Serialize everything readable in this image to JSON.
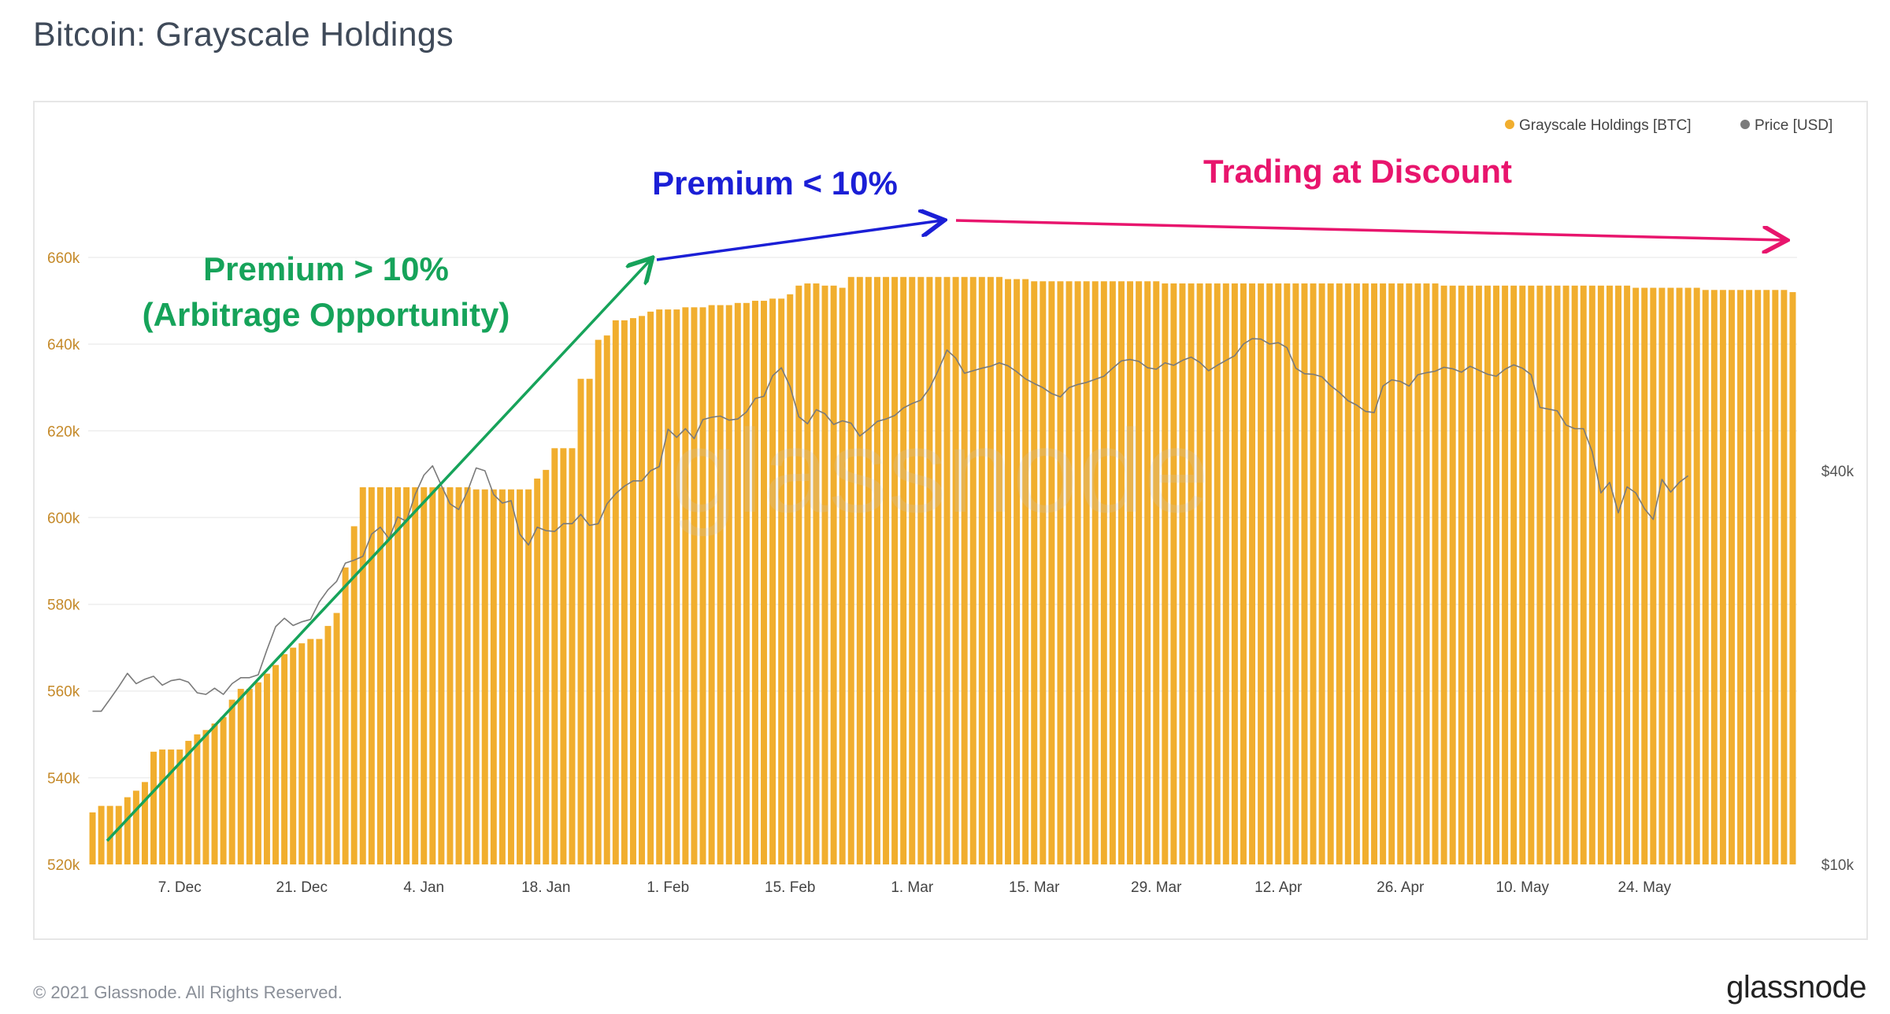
{
  "page": {
    "title": "Bitcoin: Grayscale Holdings",
    "copyright": "© 2021 Glassnode. All Rights Reserved.",
    "brand": "glassnode",
    "watermark": "glassnode"
  },
  "colors": {
    "bars": "#f1ae2e",
    "price_line": "#7a7a7a",
    "left_axis_text": "#c58a2a",
    "right_axis_text": "#555555",
    "annotation_green": "#16a35a",
    "annotation_blue": "#1b1fd6",
    "annotation_pink": "#e8156d"
  },
  "annotations": {
    "premium_high_line1": "Premium > 10%",
    "premium_high_line2": "(Arbitrage Opportunity)",
    "premium_low": "Premium < 10%",
    "discount": "Trading at Discount"
  },
  "chart_data": {
    "type": "bar",
    "title": "Bitcoin: Grayscale Holdings",
    "legend_position": "top-right",
    "grid": true,
    "x_ticks": [
      "7. Dec",
      "21. Dec",
      "4. Jan",
      "18. Jan",
      "1. Feb",
      "15. Feb",
      "1. Mar",
      "15. Mar",
      "29. Mar",
      "12. Apr",
      "26. Apr",
      "10. May",
      "24. May"
    ],
    "y_left": {
      "ylim": [
        520000,
        665000
      ],
      "ticks": [
        520000,
        540000,
        560000,
        580000,
        600000,
        620000,
        640000,
        660000
      ],
      "tick_labels": [
        "520k",
        "540k",
        "560k",
        "580k",
        "600k",
        "620k",
        "640k",
        "660k"
      ]
    },
    "y_right": {
      "scale": "log",
      "ticks": [
        10000,
        40000
      ],
      "tick_labels": [
        "$10k",
        "$40k"
      ]
    },
    "series": [
      {
        "name": "Grayscale Holdings [BTC]",
        "type": "bar",
        "axis": "left",
        "start_date": "2020-11-27",
        "values": [
          532000,
          533500,
          533500,
          533500,
          535500,
          537000,
          539000,
          546000,
          546500,
          546500,
          546500,
          548500,
          550000,
          551000,
          552500,
          554000,
          558000,
          560500,
          560500,
          562000,
          564000,
          566000,
          568500,
          570000,
          571000,
          572000,
          572000,
          575000,
          578000,
          588500,
          598000,
          607000,
          607000,
          607000,
          607000,
          607000,
          607000,
          607000,
          607000,
          607000,
          607000,
          607000,
          607000,
          607000,
          606500,
          606500,
          606500,
          606500,
          606500,
          606500,
          606500,
          609000,
          611000,
          616000,
          616000,
          616000,
          632000,
          632000,
          641000,
          642000,
          645500,
          645500,
          646000,
          646500,
          647500,
          648000,
          648000,
          648000,
          648500,
          648500,
          648500,
          649000,
          649000,
          649000,
          649500,
          649500,
          650000,
          650000,
          650500,
          650500,
          651500,
          653500,
          654000,
          654000,
          653500,
          653500,
          653000,
          655500,
          655500,
          655500,
          655500,
          655500,
          655500,
          655500,
          655500,
          655500,
          655500,
          655500,
          655500,
          655500,
          655500,
          655500,
          655500,
          655500,
          655500,
          655000,
          655000,
          655000,
          654500,
          654500,
          654500,
          654500,
          654500,
          654500,
          654500,
          654500,
          654500,
          654500,
          654500,
          654500,
          654500,
          654500,
          654500,
          654000,
          654000,
          654000,
          654000,
          654000,
          654000,
          654000,
          654000,
          654000,
          654000,
          654000,
          654000,
          654000,
          654000,
          654000,
          654000,
          654000,
          654000,
          654000,
          654000,
          654000,
          654000,
          654000,
          654000,
          654000,
          654000,
          654000,
          654000,
          654000,
          654000,
          654000,
          654000,
          653500,
          653500,
          653500,
          653500,
          653500,
          653500,
          653500,
          653500,
          653500,
          653500,
          653500,
          653500,
          653500,
          653500,
          653500,
          653500,
          653500,
          653500,
          653500,
          653500,
          653500,
          653500,
          653000,
          653000,
          653000,
          653000,
          653000,
          653000,
          653000,
          653000,
          652500,
          652500,
          652500,
          652500,
          652500,
          652500,
          652500,
          652500,
          652500,
          652500,
          652000
        ]
      },
      {
        "name": "Price [USD]",
        "type": "line",
        "axis": "right",
        "start_date": "2020-11-27",
        "values": [
          17150,
          17150,
          17900,
          18700,
          19600,
          18900,
          19200,
          19400,
          18800,
          19100,
          19200,
          19000,
          18300,
          18200,
          18600,
          18200,
          18900,
          19300,
          19300,
          19500,
          21300,
          23100,
          23800,
          23200,
          23500,
          23700,
          25200,
          26300,
          27100,
          28900,
          29200,
          29600,
          32000,
          32800,
          31500,
          34000,
          33500,
          36800,
          39400,
          40700,
          38000,
          35600,
          34900,
          37200,
          40400,
          40000,
          36800,
          35700,
          36000,
          32000,
          30800,
          32800,
          32400,
          32300,
          33200,
          33200,
          34300,
          33000,
          33200,
          35600,
          36900,
          37900,
          38600,
          38600,
          40000,
          40600,
          46300,
          45000,
          46400,
          44800,
          47900,
          48300,
          48500,
          47800,
          48000,
          49200,
          51600,
          52000,
          55900,
          57500,
          53800,
          48400,
          47200,
          49600,
          48900,
          47100,
          47700,
          47300,
          45200,
          46300,
          47600,
          48000,
          48600,
          49900,
          50700,
          51300,
          53500,
          57000,
          61200,
          59500,
          56400,
          56900,
          57400,
          57800,
          58500,
          57900,
          56700,
          55300,
          54400,
          53600,
          52500,
          51900,
          53600,
          54200,
          54600,
          55200,
          55800,
          57400,
          58900,
          59200,
          58800,
          57500,
          57200,
          58500,
          58000,
          59000,
          59700,
          58600,
          56900,
          58000,
          59000,
          60000,
          62500,
          63700,
          63600,
          62500,
          62800,
          61700,
          57400,
          56300,
          56200,
          55700,
          54000,
          52700,
          51200,
          50400,
          49300,
          49100,
          53900,
          55100,
          54800,
          53900,
          56100,
          56500,
          56800,
          57600,
          57300,
          56600,
          57800,
          57000,
          56200,
          55800,
          57200,
          58100,
          57400,
          56100,
          50000,
          49700,
          49400,
          47000,
          46400,
          46400,
          42800,
          37000,
          38400,
          34500,
          37800,
          37000,
          35000,
          33700,
          38800,
          37100,
          38400,
          39300
        ]
      }
    ]
  }
}
